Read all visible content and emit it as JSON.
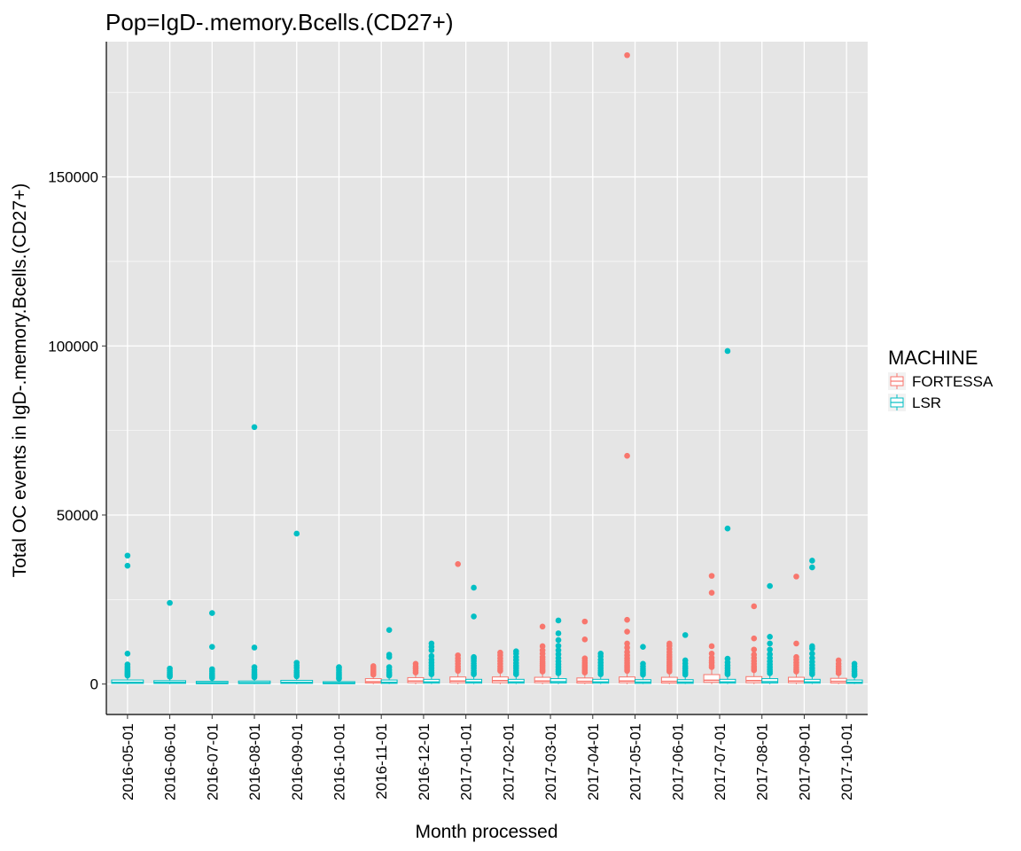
{
  "chart_data": {
    "type": "boxplot",
    "title": "Pop=IgD-.memory.Bcells.(CD27+)",
    "xlabel": "Month processed",
    "ylabel": "Total OC events in IgD-.memory.Bcells.(CD27+)",
    "ylim": [
      -9000,
      190000
    ],
    "y_ticks": [
      0,
      50000,
      100000,
      150000
    ],
    "y_tick_labels": [
      "0",
      "50000",
      "100000",
      "150000"
    ],
    "grid": true,
    "legend": {
      "title": "MACHINE",
      "position": "right",
      "entries": [
        "FORTESSA",
        "LSR"
      ]
    },
    "colors": {
      "FORTESSA": "#F8766D",
      "LSR": "#00BFC4",
      "panel": "#E5E5E5",
      "grid": "#FFFFFF"
    },
    "categories": [
      "2016-05-01",
      "2016-06-01",
      "2016-07-01",
      "2016-08-01",
      "2016-09-01",
      "2016-10-01",
      "2016-11-01",
      "2016-12-01",
      "2017-01-01",
      "2017-02-01",
      "2017-03-01",
      "2017-04-01",
      "2017-05-01",
      "2017-06-01",
      "2017-07-01",
      "2017-08-01",
      "2017-09-01",
      "2017-10-01"
    ],
    "series": [
      {
        "name": "FORTESSA",
        "boxes": [
          null,
          null,
          null,
          null,
          null,
          null,
          {
            "category": "2016-11-01",
            "q1": 300,
            "median": 700,
            "q3": 1600,
            "whisker_low": 0,
            "whisker_high": 2500,
            "outliers": [
              2800,
              3300,
              3800,
              4300,
              4800,
              5300
            ]
          },
          {
            "category": "2016-12-01",
            "q1": 400,
            "median": 900,
            "q3": 1900,
            "whisker_low": 0,
            "whisker_high": 3000,
            "outliers": [
              3400,
              4000,
              4600,
              5200,
              6000
            ]
          },
          {
            "category": "2017-01-01",
            "q1": 400,
            "median": 900,
            "q3": 2100,
            "whisker_low": 0,
            "whisker_high": 3500,
            "outliers": [
              3900,
              4500,
              5200,
              6000,
              6800,
              7600,
              8500,
              35500
            ]
          },
          {
            "category": "2017-02-01",
            "q1": 400,
            "median": 1000,
            "q3": 2100,
            "whisker_low": 0,
            "whisker_high": 3500,
            "outliers": [
              3900,
              4500,
              5200,
              6000,
              6800,
              7600,
              8500,
              9300
            ]
          },
          {
            "category": "2017-03-01",
            "q1": 400,
            "median": 900,
            "q3": 2000,
            "whisker_low": 0,
            "whisker_high": 3300,
            "outliers": [
              3700,
              4200,
              4800,
              5400,
              6000,
              6600,
              7300,
              8000,
              9000,
              10000,
              11200,
              17000
            ]
          },
          {
            "category": "2017-04-01",
            "q1": 300,
            "median": 800,
            "q3": 1800,
            "whisker_low": 0,
            "whisker_high": 3000,
            "outliers": [
              3400,
              3900,
              4400,
              5000,
              5600,
              6200,
              6900,
              7600,
              13200,
              18500
            ]
          },
          {
            "category": "2017-05-01",
            "q1": 400,
            "median": 900,
            "q3": 2100,
            "whisker_low": 0,
            "whisker_high": 3500,
            "outliers": [
              3900,
              4400,
              5000,
              5600,
              6200,
              6900,
              7600,
              8500,
              9500,
              10800,
              12000,
              15500,
              19000,
              67500,
              186000
            ]
          },
          {
            "category": "2017-06-01",
            "q1": 300,
            "median": 800,
            "q3": 2000,
            "whisker_low": 0,
            "whisker_high": 3300,
            "outliers": [
              3700,
              4200,
              4800,
              5400,
              6000,
              6600,
              7300,
              8000,
              8700,
              9500,
              10400,
              11300,
              12000
            ]
          },
          {
            "category": "2017-07-01",
            "q1": 500,
            "median": 1100,
            "q3": 2800,
            "whisker_low": 0,
            "whisker_high": 4500,
            "outliers": [
              5000,
              5600,
              6300,
              7000,
              7800,
              9000,
              11200,
              27000,
              32000
            ]
          },
          {
            "category": "2017-08-01",
            "q1": 400,
            "median": 1000,
            "q3": 2200,
            "whisker_low": 0,
            "whisker_high": 3700,
            "outliers": [
              4100,
              4700,
              5300,
              6000,
              6800,
              7700,
              8700,
              10200,
              13500,
              23000
            ]
          },
          {
            "category": "2017-09-01",
            "q1": 400,
            "median": 900,
            "q3": 2000,
            "whisker_low": 0,
            "whisker_high": 3300,
            "outliers": [
              3700,
              4300,
              4900,
              5600,
              6300,
              7200,
              8000,
              12000,
              31800
            ]
          },
          {
            "category": "2017-10-01",
            "q1": 300,
            "median": 800,
            "q3": 1700,
            "whisker_low": 0,
            "whisker_high": 2800,
            "outliers": [
              3200,
              3800,
              4500,
              5200,
              6000,
              7000
            ]
          }
        ]
      },
      {
        "name": "LSR",
        "boxes": [
          {
            "category": "2016-05-01",
            "q1": 200,
            "median": 500,
            "q3": 1200,
            "whisker_low": 0,
            "whisker_high": 2200,
            "outliers": [
              2500,
              2900,
              3300,
              3700,
              4200,
              4700,
              5200,
              5800,
              9000,
              35000,
              38000
            ]
          },
          {
            "category": "2016-06-01",
            "q1": 200,
            "median": 450,
            "q3": 1000,
            "whisker_low": 0,
            "whisker_high": 1900,
            "outliers": [
              2200,
              2600,
              3000,
              3500,
              4000,
              4600,
              24000
            ]
          },
          {
            "category": "2016-07-01",
            "q1": 100,
            "median": 350,
            "q3": 800,
            "whisker_low": 0,
            "whisker_high": 1500,
            "outliers": [
              1800,
              2200,
              2700,
              3200,
              3800,
              4400,
              11000,
              21000
            ]
          },
          {
            "category": "2016-08-01",
            "q1": 150,
            "median": 400,
            "q3": 900,
            "whisker_low": 0,
            "whisker_high": 1700,
            "outliers": [
              2000,
              2500,
              3000,
              3600,
              4200,
              5000,
              10800,
              76000
            ]
          },
          {
            "category": "2016-09-01",
            "q1": 200,
            "median": 500,
            "q3": 1100,
            "whisker_low": 0,
            "whisker_high": 2000,
            "outliers": [
              2300,
              2800,
              3400,
              4000,
              4800,
              5500,
              6300,
              44500
            ]
          },
          {
            "category": "2016-10-01",
            "q1": 100,
            "median": 300,
            "q3": 700,
            "whisker_low": 0,
            "whisker_high": 1300,
            "outliers": [
              1600,
              2000,
              2500,
              3000,
              3500,
              4100,
              4700,
              5000
            ]
          },
          {
            "category": "2016-11-01",
            "q1": 200,
            "median": 500,
            "q3": 1200,
            "whisker_low": 0,
            "whisker_high": 2200,
            "outliers": [
              2500,
              3000,
              3500,
              4200,
              5000,
              8000,
              8700,
              16000
            ]
          },
          {
            "category": "2016-12-01",
            "q1": 250,
            "median": 600,
            "q3": 1400,
            "whisker_low": 0,
            "whisker_high": 2500,
            "outliers": [
              2900,
              3400,
              4000,
              4700,
              5500,
              6300,
              7200,
              8300,
              10000,
              11000,
              12000
            ]
          },
          {
            "category": "2017-01-01",
            "q1": 250,
            "median": 600,
            "q3": 1400,
            "whisker_low": 0,
            "whisker_high": 2500,
            "outliers": [
              2900,
              3400,
              4000,
              4700,
              5400,
              6100,
              6800,
              7500,
              8000,
              20000,
              28500
            ]
          },
          {
            "category": "2017-02-01",
            "q1": 250,
            "median": 600,
            "q3": 1400,
            "whisker_low": 0,
            "whisker_high": 2500,
            "outliers": [
              2900,
              3400,
              4000,
              4700,
              5400,
              6200,
              7100,
              8000,
              9000,
              9700
            ]
          },
          {
            "category": "2017-03-01",
            "q1": 300,
            "median": 700,
            "q3": 1600,
            "whisker_low": 0,
            "whisker_high": 2800,
            "outliers": [
              3200,
              3700,
              4300,
              5000,
              5800,
              6700,
              7700,
              8800,
              10000,
              11300,
              13000,
              15000,
              18800
            ]
          },
          {
            "category": "2017-04-01",
            "q1": 250,
            "median": 600,
            "q3": 1400,
            "whisker_low": 0,
            "whisker_high": 2500,
            "outliers": [
              2900,
              3400,
              4000,
              4700,
              5500,
              6300,
              7200,
              8200,
              9000
            ]
          },
          {
            "category": "2017-05-01",
            "q1": 200,
            "median": 550,
            "q3": 1300,
            "whisker_low": 0,
            "whisker_high": 2400,
            "outliers": [
              2800,
              3300,
              3900,
              4500,
              5200,
              6000,
              11000
            ]
          },
          {
            "category": "2017-06-01",
            "q1": 200,
            "median": 550,
            "q3": 1300,
            "whisker_low": 0,
            "whisker_high": 2400,
            "outliers": [
              2800,
              3300,
              3900,
              4600,
              5300,
              6100,
              7000,
              14500
            ]
          },
          {
            "category": "2017-07-01",
            "q1": 250,
            "median": 600,
            "q3": 1400,
            "whisker_low": 0,
            "whisker_high": 2500,
            "outliers": [
              2900,
              3400,
              4000,
              4700,
              5500,
              6400,
              7500,
              46000,
              98500
            ]
          },
          {
            "category": "2017-08-01",
            "q1": 300,
            "median": 700,
            "q3": 1600,
            "whisker_low": 0,
            "whisker_high": 2800,
            "outliers": [
              3200,
              3700,
              4300,
              5000,
              5800,
              6700,
              7700,
              8800,
              10200,
              12000,
              14000,
              29000
            ]
          },
          {
            "category": "2017-09-01",
            "q1": 250,
            "median": 600,
            "q3": 1400,
            "whisker_low": 0,
            "whisker_high": 2500,
            "outliers": [
              2900,
              3400,
              4000,
              4700,
              5600,
              6600,
              7700,
              9000,
              10500,
              11200,
              34500,
              36500
            ]
          },
          {
            "category": "2017-10-01",
            "q1": 200,
            "median": 500,
            "q3": 1200,
            "whisker_low": 0,
            "whisker_high": 2200,
            "outliers": [
              2600,
              3100,
              3700,
              4400,
              5200,
              6000
            ]
          }
        ]
      }
    ]
  }
}
